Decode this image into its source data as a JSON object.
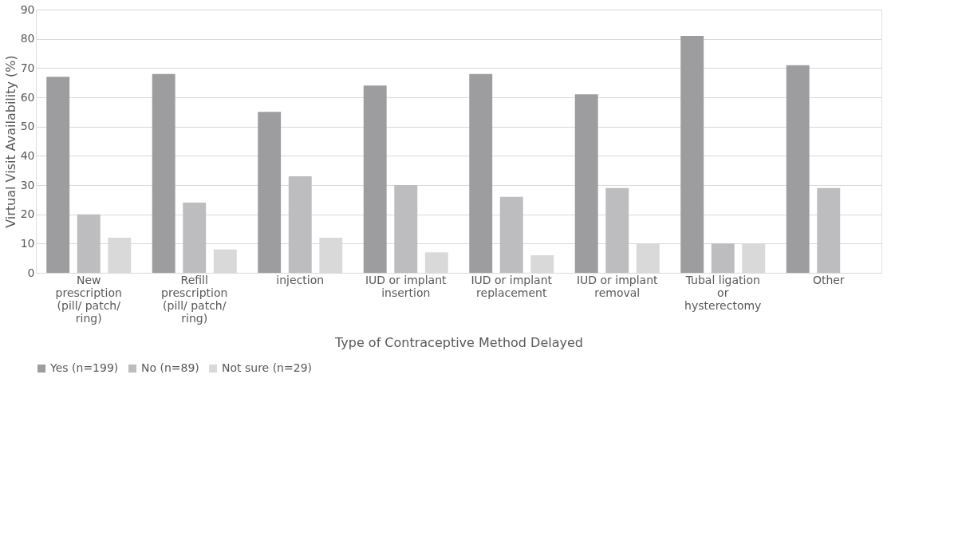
{
  "chart_data": {
    "type": "bar",
    "categories": [
      "New prescription (pill/ patch/ ring)",
      "Refill prescription (pill/ patch/ ring)",
      "injection",
      "IUD or implant insertion",
      "IUD or implant replacement",
      "IUD or implant removal",
      "Tubal ligation or hysterectomy",
      "Other"
    ],
    "series": [
      {
        "name": "Yes (n=199)",
        "color": "#9d9d9f",
        "values": [
          67,
          68,
          55,
          64,
          68,
          61,
          81,
          71
        ]
      },
      {
        "name": "No (n=89)",
        "color": "#bdbdbf",
        "values": [
          20,
          24,
          33,
          30,
          26,
          29,
          10,
          29
        ]
      },
      {
        "name": "Not sure (n=29)",
        "color": "#d9d9d9",
        "values": [
          12,
          8,
          12,
          7,
          6,
          10,
          10,
          null
        ]
      }
    ],
    "xlabel": "Type of Contraceptive Method Delayed",
    "ylabel": "Virtual Visit Availability (%)",
    "ylim": [
      0,
      90
    ],
    "yticks": [
      0,
      10,
      20,
      30,
      40,
      50,
      60,
      70,
      80,
      90
    ],
    "grid": "y",
    "legend": "bottom"
  }
}
